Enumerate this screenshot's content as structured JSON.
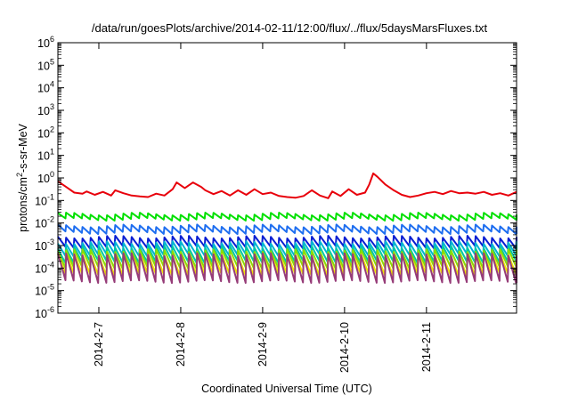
{
  "chart_data": {
    "type": "line",
    "title": "/data/run/goesPlots/archive/2014-02-11/12:00/flux/../flux/5daysMarsFluxes.txt",
    "xlabel": "Coordinated Universal Time (UTC)",
    "ylabel": {
      "prefix": "protons/cm",
      "sup": "2",
      "suffix": "-s-sr-MeV"
    },
    "xlim": [
      6.0,
      11.6
    ],
    "xticks": [
      {
        "x": 6.5,
        "label": "2014-2-7"
      },
      {
        "x": 7.5,
        "label": "2014-2-8"
      },
      {
        "x": 8.5,
        "label": "2014-2-9"
      },
      {
        "x": 9.5,
        "label": "2014-2-10"
      },
      {
        "x": 10.5,
        "label": "2014-2-11"
      }
    ],
    "y_scale": "log",
    "ylim_exp": [
      -6,
      6
    ],
    "yticks": [
      {
        "exp": -6,
        "base": "10",
        "sup": "-6"
      },
      {
        "exp": -5,
        "base": "10",
        "sup": "-5"
      },
      {
        "exp": -4,
        "base": "10",
        "sup": "-4"
      },
      {
        "exp": -3,
        "base": "10",
        "sup": "-3"
      },
      {
        "exp": -2,
        "base": "10",
        "sup": "-2"
      },
      {
        "exp": -1,
        "base": "10",
        "sup": "-1"
      },
      {
        "exp": 0,
        "base": "10",
        "sup": "0"
      },
      {
        "exp": 1,
        "base": "10",
        "sup": "1"
      },
      {
        "exp": 2,
        "base": "10",
        "sup": "2"
      },
      {
        "exp": 3,
        "base": "10",
        "sup": "3"
      },
      {
        "exp": 4,
        "base": "10",
        "sup": "4"
      },
      {
        "exp": 5,
        "base": "10",
        "sup": "5"
      },
      {
        "exp": 6,
        "base": "10",
        "sup": "6"
      }
    ],
    "grid": false,
    "legend": "none",
    "series": [
      {
        "color": "#e8000b",
        "x": [
          6.0,
          6.1,
          6.2,
          6.3,
          6.35,
          6.45,
          6.55,
          6.65,
          6.7,
          6.8,
          6.9,
          7.0,
          7.1,
          7.2,
          7.3,
          7.4,
          7.45,
          7.55,
          7.65,
          7.75,
          7.8,
          7.9,
          8.0,
          8.1,
          8.2,
          8.3,
          8.4,
          8.5,
          8.6,
          8.7,
          8.8,
          8.9,
          9.0,
          9.1,
          9.2,
          9.3,
          9.35,
          9.45,
          9.55,
          9.65,
          9.75,
          9.8,
          9.85,
          9.9,
          10.0,
          10.1,
          10.2,
          10.3,
          10.4,
          10.5,
          10.6,
          10.7,
          10.8,
          10.9,
          11.0,
          11.1,
          11.2,
          11.3,
          11.4,
          11.5,
          11.6
        ],
        "y_exp": [
          -0.15,
          -0.4,
          -0.65,
          -0.7,
          -0.6,
          -0.75,
          -0.62,
          -0.78,
          -0.55,
          -0.68,
          -0.78,
          -0.82,
          -0.85,
          -0.7,
          -0.78,
          -0.5,
          -0.2,
          -0.45,
          -0.2,
          -0.4,
          -0.55,
          -0.72,
          -0.58,
          -0.78,
          -0.55,
          -0.75,
          -0.5,
          -0.72,
          -0.65,
          -0.8,
          -0.85,
          -0.88,
          -0.8,
          -0.55,
          -0.78,
          -0.9,
          -0.6,
          -0.8,
          -0.5,
          -0.75,
          -0.65,
          -0.3,
          0.2,
          0.05,
          -0.3,
          -0.55,
          -0.75,
          -0.85,
          -0.78,
          -0.68,
          -0.62,
          -0.72,
          -0.58,
          -0.68,
          -0.65,
          -0.7,
          -0.62,
          -0.75,
          -0.68,
          -0.78,
          -0.62
        ]
      },
      {
        "color": "#00e000",
        "y_base": -1.72,
        "y_amp": 0.24,
        "period": 0.1
      },
      {
        "color": "#1e6ef0",
        "y_base": -2.28,
        "y_amp": 0.3,
        "period": 0.1
      },
      {
        "color": "#0a1ed2",
        "y_base": -2.85,
        "y_amp": 0.45,
        "period": 0.1
      },
      {
        "color": "#00b4d2",
        "y_base": -3.15,
        "y_amp": 0.55,
        "period": 0.1
      },
      {
        "color": "#00c8a0",
        "y_base": -3.4,
        "y_amp": 0.65,
        "period": 0.1
      },
      {
        "color": "#8cdc00",
        "y_base": -3.6,
        "y_amp": 0.75,
        "period": 0.1
      },
      {
        "color": "#f0e600",
        "y_base": -3.85,
        "y_amp": 0.85,
        "period": 0.1
      },
      {
        "color": "#963c78",
        "y_base": -4.0,
        "y_amp": 1.2,
        "period": 0.1
      }
    ]
  }
}
